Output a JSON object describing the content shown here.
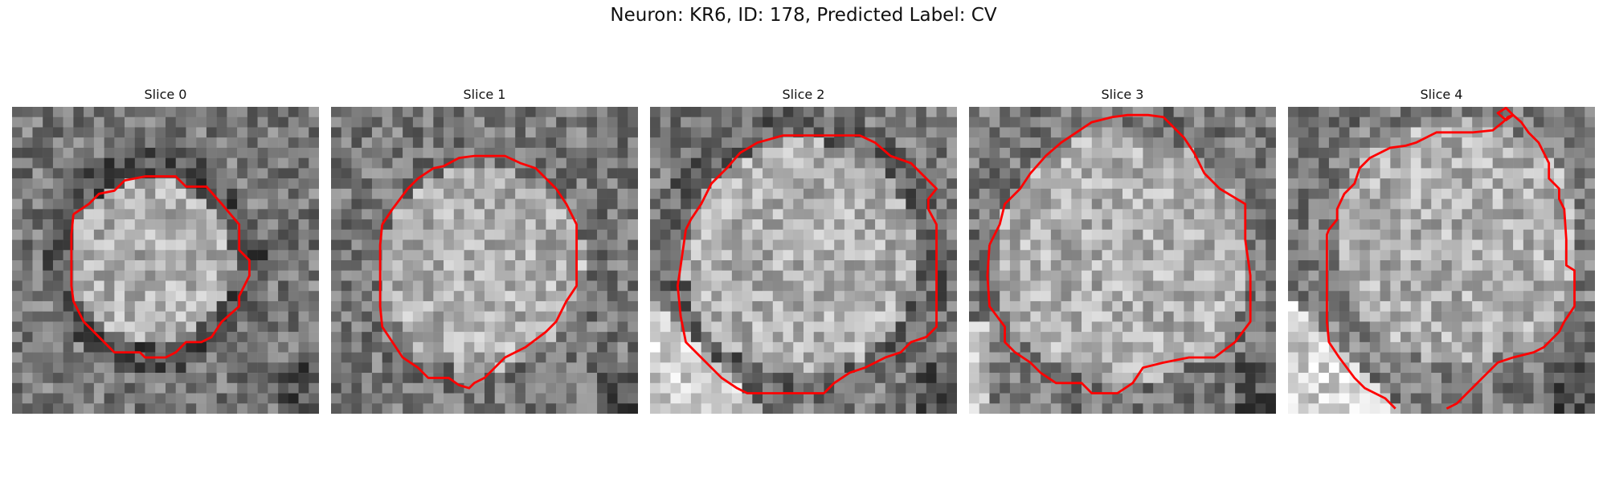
{
  "figure": {
    "title": "Neuron: KR6, ID: 178, Predicted Label: CV",
    "contour_color": "#ff0000",
    "colormap": "gray"
  },
  "panels": [
    {
      "title": "Slice 0",
      "seed": 11,
      "center": [
        13.6,
        15.0
      ],
      "radius": 9.5,
      "rim_strength": 1.0,
      "edge_bright": "none"
    },
    {
      "title": "Slice 1",
      "seed": 23,
      "center": [
        14.8,
        15.8
      ],
      "radius": 11.5,
      "rim_strength": 0.6,
      "edge_bright": "none"
    },
    {
      "title": "Slice 2",
      "seed": 37,
      "center": [
        14.8,
        14.8
      ],
      "radius": 13.0,
      "rim_strength": 0.8,
      "edge_bright": "bottom-left"
    },
    {
      "title": "Slice 3",
      "seed": 41,
      "center": [
        15.0,
        14.8
      ],
      "radius": 14.0,
      "rim_strength": 0.6,
      "edge_bright": "left"
    },
    {
      "title": "Slice 4",
      "seed": 53,
      "center": [
        16.5,
        13.0
      ],
      "radius": 13.5,
      "rim_strength": 0.5,
      "edge_bright": "bottom-left"
    }
  ]
}
